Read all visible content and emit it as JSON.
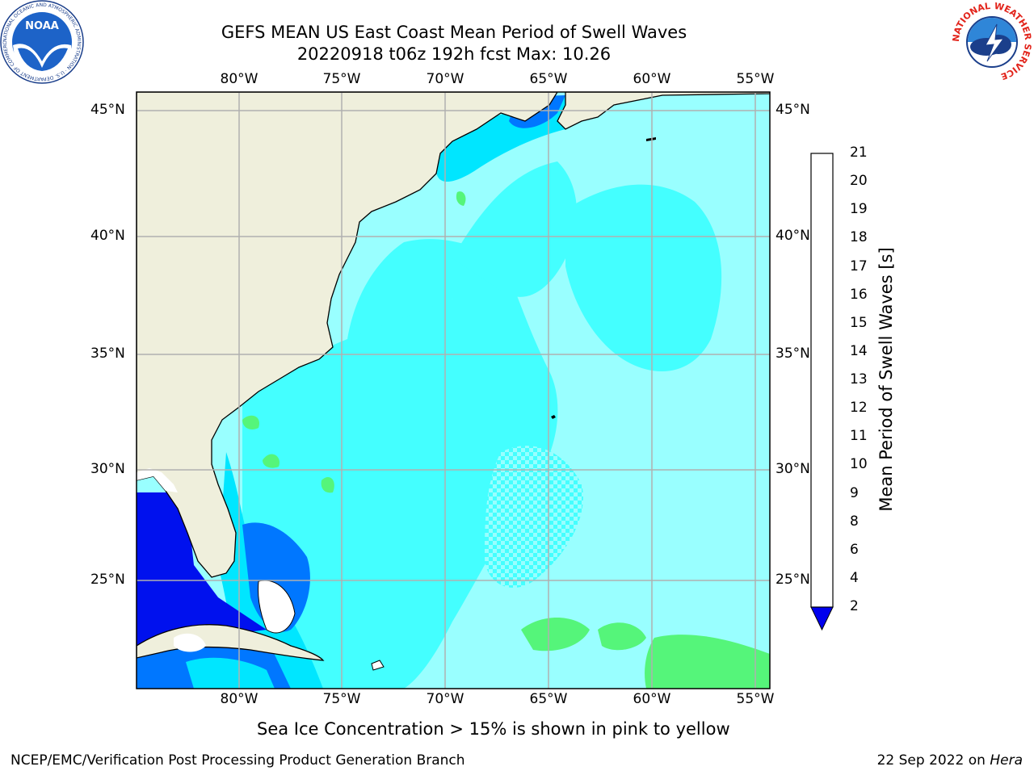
{
  "title_line1": "GEFS MEAN US East Coast Mean Period of Swell Waves",
  "title_line2": "20220918 t06z 192h fcst   Max: 10.26",
  "map": {
    "lon_labels": [
      "80°W",
      "75°W",
      "70°W",
      "65°W",
      "60°W",
      "55°W"
    ],
    "lon_values": [
      -80,
      -75,
      -70,
      -65,
      -60,
      -55
    ],
    "lat_labels": [
      "45°N",
      "40°N",
      "35°N",
      "30°N",
      "25°N"
    ],
    "lat_values": [
      45,
      40,
      35,
      30,
      25
    ],
    "extent": {
      "lon_min": -85,
      "lon_max": -54.3,
      "lat_min": 20.5,
      "lat_max": 45.8
    },
    "land_color": "#efefdc",
    "gridline_color": "#b0b0b0"
  },
  "colorbar": {
    "title": "Mean Period of Swell Waves [s]",
    "levels": [
      "2",
      "4",
      "6",
      "8",
      "9",
      "10",
      "11",
      "12",
      "13",
      "14",
      "15",
      "16",
      "17",
      "18",
      "19",
      "20",
      "21"
    ],
    "colors": [
      "#0066ff",
      "#00ccff",
      "#33ffff",
      "#99ffff",
      "#55f57a",
      "#33dd33",
      "#00cc00",
      "#55dd11",
      "#99dd00",
      "#ccee00",
      "#eeee00",
      "#ffe600",
      "#ffcc00",
      "#ffaa00",
      "#ff8800",
      "#ff5500",
      "#ff2200",
      "#ff0000"
    ],
    "under_color": "#0000ee"
  },
  "field_colors": {
    "lt2": "#0011ee",
    "c2_4": "#0077ff",
    "c4_6": "#00e6ff",
    "c6_8": "#44ffff",
    "c8_9": "#99ffff",
    "c9_10": "#55f57a",
    "nodata": "#ffffff"
  },
  "footnote": "Sea Ice Concentration > 15% is shown in pink to yellow",
  "footer_left": "NCEP/EMC/Verification Post Processing Product Generation Branch",
  "footer_right_prefix": "22 Sep 2022 on ",
  "footer_right_host": "Hera",
  "logo_left": {
    "text": "NOAA",
    "ring_text": "NATIONAL OCEANIC AND ATMOSPHERIC ADMINISTRATION · U.S. DEPARTMENT OF COMMERCE"
  },
  "logo_right": {
    "ring_text": "NATIONAL WEATHER SERVICE"
  }
}
